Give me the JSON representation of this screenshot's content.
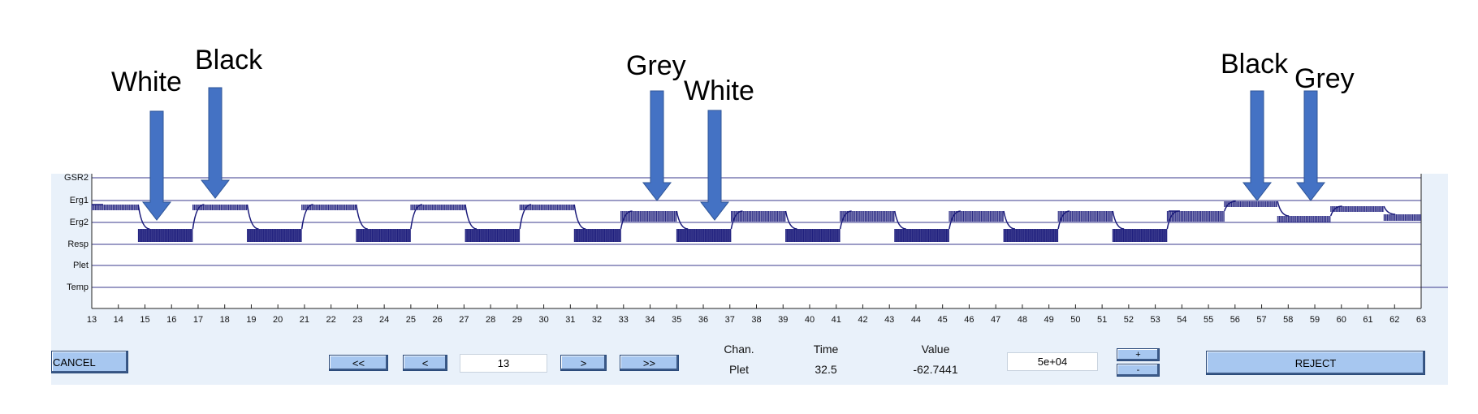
{
  "annotations": [
    {
      "label": "White"
    },
    {
      "label": "Black"
    },
    {
      "label": "Grey"
    },
    {
      "label": "White"
    },
    {
      "label": "Black"
    },
    {
      "label": "Grey"
    }
  ],
  "annotation_color": "#4472c4",
  "trace_color": "#1a1a7a",
  "channels": [
    "GSR2",
    "Erg1",
    "Erg2",
    "Resp",
    "Plet",
    "Temp"
  ],
  "x_axis": {
    "min": 13,
    "max": 63,
    "ticks": [
      "13",
      "14",
      "15",
      "16",
      "17",
      "18",
      "19",
      "20",
      "21",
      "22",
      "23",
      "24",
      "25",
      "26",
      "27",
      "28",
      "29",
      "30",
      "31",
      "32",
      "33",
      "34",
      "35",
      "36",
      "37",
      "38",
      "39",
      "40",
      "41",
      "42",
      "43",
      "44",
      "45",
      "46",
      "47",
      "48",
      "49",
      "50",
      "51",
      "52",
      "53",
      "54",
      "55",
      "56",
      "57",
      "58",
      "59",
      "60",
      "61",
      "62",
      "63"
    ]
  },
  "controls": {
    "cancel_label": "CANCEL",
    "first_label": "<<",
    "prev_label": "<",
    "position_value": "13",
    "next_label": ">",
    "last_label": ">>",
    "chan_header": "Chan.",
    "chan_value": "Plet",
    "time_header": "Time",
    "time_value": "32.5",
    "value_header": "Value",
    "value_value": "-62.7441",
    "scale_value": "5e+04",
    "plus_label": "+",
    "minus_label": "-",
    "reject_label": "REJECT"
  }
}
